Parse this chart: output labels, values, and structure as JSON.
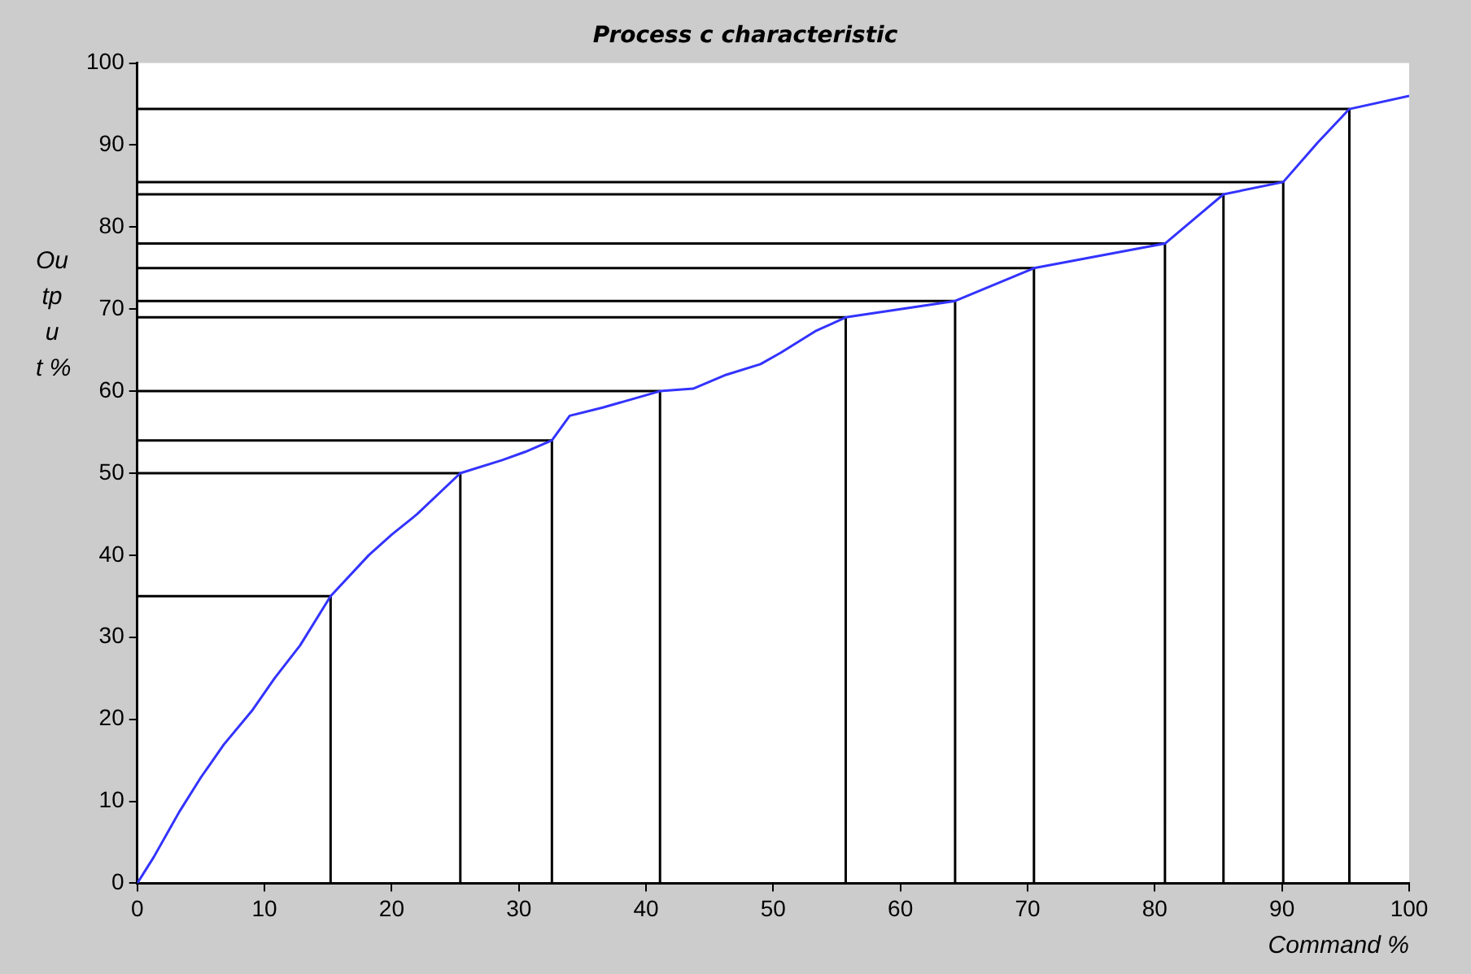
{
  "chart_data": {
    "type": "line",
    "title": "Process c characteristic",
    "xlabel": "Command %",
    "ylabel": "Output %",
    "xlim": [
      0,
      100
    ],
    "xticks": [
      0,
      10,
      20,
      30,
      40,
      50,
      60,
      70,
      80,
      90,
      100
    ],
    "ylim": [
      0,
      100
    ],
    "yticks": [
      0,
      10,
      20,
      30,
      40,
      50,
      60,
      70,
      80,
      90,
      100
    ],
    "grid": false,
    "legend": false,
    "marker": "none",
    "line_style": "solid",
    "series": [
      {
        "color": "#3333ff",
        "x": [
          0,
          1.3,
          3.3,
          5,
          6.8,
          9,
          10.8,
          12.8,
          15.2,
          18.2,
          20,
          22,
          25.4,
          28.7,
          30.5,
          32.6,
          34,
          36.6,
          41.1,
          43.7,
          46.3,
          49,
          50.6,
          53.3,
          55.7,
          64.3,
          70.5,
          80.8,
          85.4,
          90.1,
          92.8,
          95.3,
          100
        ],
        "values": [
          0,
          3.2,
          8.7,
          12.9,
          16.9,
          21,
          25,
          29,
          35,
          40,
          42.5,
          45,
          50,
          51.6,
          52.6,
          54,
          57,
          58,
          60,
          60.3,
          62,
          63.3,
          64.7,
          67.3,
          69,
          71,
          75,
          78,
          84,
          85.5,
          90.3,
          94.4,
          96
        ]
      },
      {
        "color": "#000000",
        "x": [
          15.2,
          15.2,
          0
        ],
        "values": [
          0,
          35,
          35
        ]
      },
      {
        "color": "#000000",
        "x": [
          25.4,
          25.4,
          0
        ],
        "values": [
          0,
          50,
          50
        ]
      },
      {
        "color": "#000000",
        "x": [
          32.6,
          32.6,
          0
        ],
        "values": [
          0,
          54,
          54
        ]
      },
      {
        "color": "#000000",
        "x": [
          41.1,
          41.1,
          0
        ],
        "values": [
          0,
          60,
          60
        ]
      },
      {
        "color": "#000000",
        "x": [
          55.7,
          55.7,
          0
        ],
        "values": [
          0,
          69,
          69
        ]
      },
      {
        "color": "#000000",
        "x": [
          64.3,
          64.3,
          0
        ],
        "values": [
          0,
          71,
          71
        ]
      },
      {
        "color": "#000000",
        "x": [
          70.5,
          70.5,
          0
        ],
        "values": [
          0,
          75,
          75
        ]
      },
      {
        "color": "#000000",
        "x": [
          80.8,
          80.8,
          0
        ],
        "values": [
          0,
          78,
          78
        ]
      },
      {
        "color": "#000000",
        "x": [
          85.4,
          85.4,
          0
        ],
        "values": [
          0,
          84,
          84
        ]
      },
      {
        "color": "#000000",
        "x": [
          90.1,
          90.1,
          0
        ],
        "values": [
          0,
          85.5,
          85.5
        ]
      },
      {
        "color": "#000000",
        "x": [
          95.3,
          95.3,
          0
        ],
        "values": [
          0,
          94.4,
          94.4
        ]
      }
    ]
  }
}
